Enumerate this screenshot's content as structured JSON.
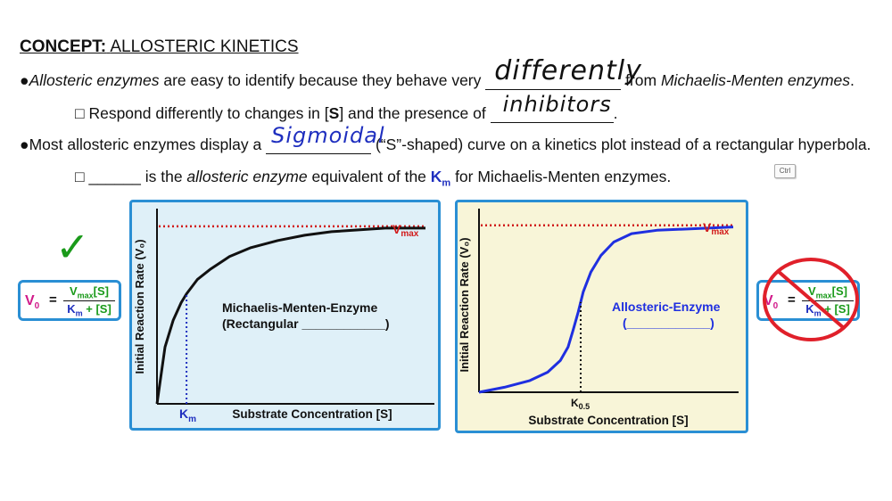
{
  "title": {
    "bold": "CONCEPT:",
    "rest": "ALLOSTERIC KINETICS"
  },
  "line1": {
    "bullet": "●",
    "italic1": "Allosteric enzymes",
    "text1": " are easy to identify because they behave very ",
    "handwritten": "differently",
    "text2": " from ",
    "italic2": "Michaelis-Menten enzymes",
    "end": "."
  },
  "line2": {
    "bullet": "□",
    "text1": "Respond differently to changes in [",
    "bold": "S",
    "text2": "] and the presence of ",
    "handwritten": "inhibitors",
    "end": "."
  },
  "line3": {
    "bullet": "●",
    "text1": "Most allosteric enzymes display a ",
    "handwritten": "Sigmoidal",
    "text2": " (“S”-shaped) curve on a kinetics plot instead of a rectangular hyperbola."
  },
  "line4": {
    "bullet": "□",
    "blank": "______",
    "text1": " is the ",
    "italic": "allosteric enzyme",
    "text2": " equivalent of the ",
    "km_k": "K",
    "km_m": "m",
    "text3": " for Michaelis-Menten enzymes."
  },
  "ctrl_label": "Ctrl",
  "check_symbol": "✓",
  "eq_left": {
    "v0": "V",
    "v0_sub": "0",
    "equals": "=",
    "top_v": "V",
    "top_sub": "max",
    "top_s": "[S]",
    "bot_k": "K",
    "bot_sub": "m",
    "bot_rest": "+ [S]"
  },
  "eq_right": {
    "v0": "V",
    "v0_sub": "0",
    "equals": "=",
    "top_v": "V",
    "top_sub": "max",
    "top_s": "[S]",
    "bot_k": "K",
    "bot_sub": "m",
    "bot_rest": "+ [S]"
  },
  "colors": {
    "accent": "#2a8fd4",
    "mm_bg": "#dff0f8",
    "allo_bg": "#f8f5d8",
    "curve_mm": "#111111",
    "curve_allo": "#1f2fe0",
    "vmax_line": "#d11a1a",
    "km_blue": "#1f2fbf",
    "eq_pink": "#d11a8a",
    "eq_green": "#1a9a1a"
  },
  "chart_data": [
    {
      "type": "line",
      "title": "",
      "xlabel": "Substrate Concentration [S]",
      "ylabel": "Initial Reaction Rate (V₀)",
      "vmax_label": "V",
      "vmax_sub": "max",
      "x_marker": "K",
      "x_marker_sub": "m",
      "x_marker_value": 0.11,
      "vmax_value": 1.0,
      "xlim": [
        0,
        1
      ],
      "ylim": [
        0,
        1.1
      ],
      "series": [
        {
          "x": [
            0,
            0.03,
            0.06,
            0.09,
            0.11,
            0.15,
            0.2,
            0.27,
            0.35,
            0.45,
            0.55,
            0.65,
            0.75,
            0.85,
            1.0
          ],
          "y": [
            0,
            0.32,
            0.47,
            0.57,
            0.62,
            0.7,
            0.76,
            0.83,
            0.88,
            0.92,
            0.95,
            0.97,
            0.98,
            0.99,
            0.99
          ]
        }
      ],
      "annotation_line1": "Michaelis-Menten-Enzyme",
      "annotation_line2": "(Rectangular ____________)"
    },
    {
      "type": "line",
      "title": "",
      "xlabel": "Substrate Concentration [S]",
      "ylabel": "Initial Reaction Rate (V₀)",
      "vmax_label": "V",
      "vmax_sub": "max",
      "x_marker": "K",
      "x_marker_sub": "0.5",
      "x_marker_value": 0.4,
      "vmax_value": 1.0,
      "xlim": [
        0,
        1
      ],
      "ylim": [
        0,
        1.1
      ],
      "series": [
        {
          "x": [
            0,
            0.1,
            0.2,
            0.27,
            0.32,
            0.35,
            0.37,
            0.39,
            0.41,
            0.44,
            0.48,
            0.53,
            0.6,
            0.7,
            0.85,
            1.0
          ],
          "y": [
            0,
            0.03,
            0.07,
            0.12,
            0.19,
            0.27,
            0.37,
            0.48,
            0.6,
            0.72,
            0.82,
            0.9,
            0.95,
            0.97,
            0.98,
            0.99
          ]
        }
      ],
      "annotation_line1": "Allosteric-Enzyme",
      "annotation_line2": "(____________)"
    }
  ]
}
